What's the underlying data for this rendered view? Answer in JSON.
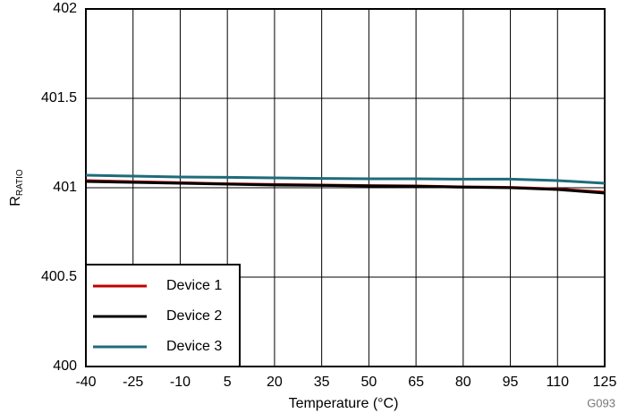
{
  "chart_data": {
    "type": "line",
    "xlabel": "Temperature (°C)",
    "ylabel": "R",
    "ylabel_sub": "RATIO",
    "annotation": "G093",
    "x": [
      -40,
      -25,
      -10,
      5,
      20,
      35,
      50,
      65,
      80,
      95,
      110,
      125
    ],
    "series": [
      {
        "name": "Device 1",
        "color": "#c00000",
        "values": [
          401.04,
          401.034,
          401.028,
          401.022,
          401.018,
          401.015,
          401.012,
          401.01,
          401.005,
          401.002,
          400.993,
          400.975
        ]
      },
      {
        "name": "Device 2",
        "color": "#000000",
        "values": [
          401.035,
          401.03,
          401.025,
          401.02,
          401.015,
          401.013,
          401.01,
          401.008,
          401.003,
          401.0,
          400.99,
          400.97
        ]
      },
      {
        "name": "Device 3",
        "color": "#1f6b7a",
        "values": [
          401.07,
          401.065,
          401.06,
          401.058,
          401.055,
          401.052,
          401.05,
          401.05,
          401.048,
          401.048,
          401.04,
          401.025
        ]
      }
    ],
    "xlim": [
      -40,
      125
    ],
    "xticks": [
      -40,
      -25,
      -10,
      5,
      20,
      35,
      50,
      65,
      80,
      95,
      110,
      125
    ],
    "ylim": [
      400,
      402
    ],
    "yticks": [
      400,
      400.5,
      401,
      401.5,
      402
    ],
    "grid": true,
    "legend": "lower left"
  }
}
